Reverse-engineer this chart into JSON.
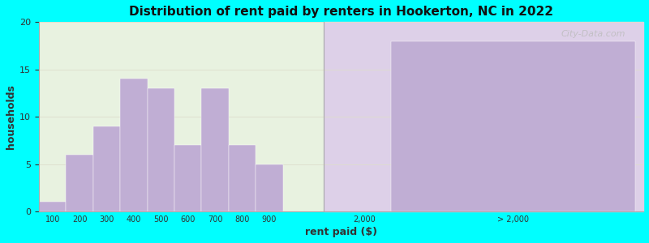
{
  "title": "Distribution of rent paid by renters in Hookerton, NC in 2022",
  "xlabel": "rent paid ($)",
  "ylabel": "households",
  "background_color": "#00FFFF",
  "plot_bg_color_left": "#e8f2e0",
  "plot_bg_color_right": "#ddd0e8",
  "bar_color": "#c0aed4",
  "bar_edge_color": "#ffffff",
  "ylim": [
    0,
    20
  ],
  "yticks": [
    0,
    5,
    10,
    15,
    20
  ],
  "bar_categories": [
    "100",
    "200",
    "300",
    "400",
    "500",
    "600",
    "700",
    "800",
    "900"
  ],
  "bar_values": [
    1,
    6,
    9,
    14,
    13,
    7,
    13,
    7,
    5
  ],
  "big_bar_value": 18,
  "watermark": "City-Data.com"
}
